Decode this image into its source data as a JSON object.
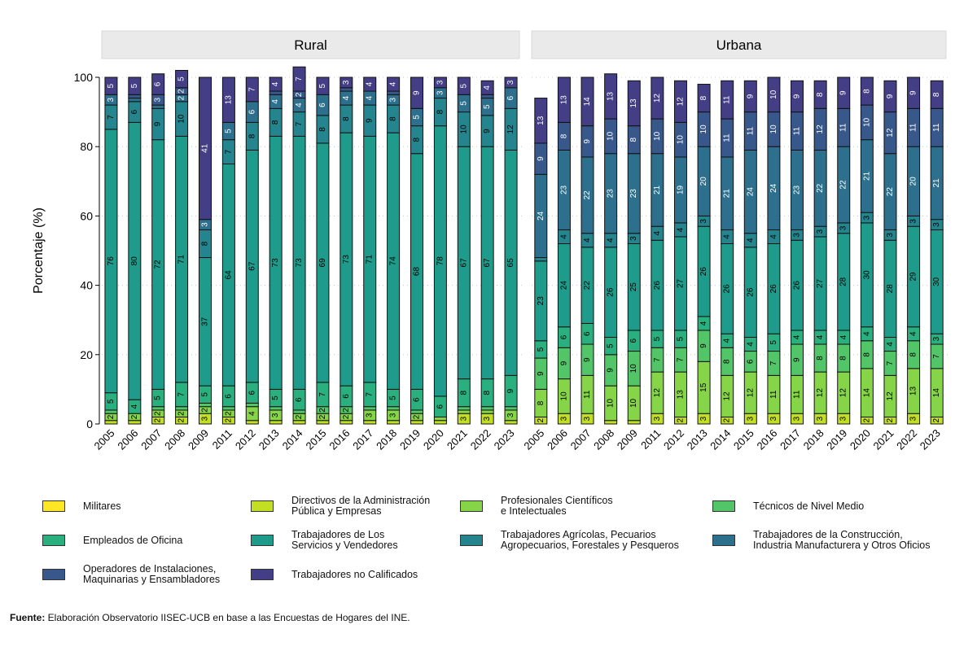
{
  "chart_data": {
    "type": "stacked-bar",
    "ylabel": "Porcentaje (%)",
    "ylim": [
      0,
      100
    ],
    "yticks": [
      0,
      20,
      40,
      60,
      80,
      100
    ],
    "legend_position": "bottom",
    "categories": [
      "Militares",
      "Directivos de la Administración\nPública y Empresas",
      "Profesionales Científicos\ne Intelectuales",
      "Técnicos de Nivel Medio",
      "Empleados de Oficina",
      "Trabajadores de Los\nServicios y Vendedores",
      "Trabajadores Agrícolas, Pecuarios\nAgropecuarios, Forestales y Pesqueros",
      "Trabajadores de la Construcción,\nIndustria Manufacturera y Otros Oficios",
      "Operadores de Instalaciones,\nMaquinarias y Ensambladores",
      "Trabajadores no Calificados"
    ],
    "colors": [
      "#fde725",
      "#c2df23",
      "#86d549",
      "#52c569",
      "#2ab07f",
      "#1e9b8a",
      "#25858e",
      "#2d708e",
      "#38588c",
      "#433e85"
    ],
    "panels": [
      {
        "title": "Rural",
        "years": [
          "2005",
          "2006",
          "2007",
          "2008",
          "2009",
          "2011",
          "2012",
          "2013",
          "2014",
          "2015",
          "2016",
          "2017",
          "2018",
          "2019",
          "2020",
          "2021",
          "2022",
          "2023"
        ],
        "values": [
          [
            0,
            1,
            2,
            1,
            5,
            76,
            7,
            3,
            0,
            5
          ],
          [
            0,
            1,
            2,
            0,
            4,
            80,
            6,
            1,
            1,
            5
          ],
          [
            0,
            2,
            2,
            1,
            5,
            72,
            9,
            1,
            3,
            6
          ],
          [
            0,
            2,
            2,
            1,
            7,
            71,
            10,
            2,
            2,
            5
          ],
          [
            0,
            3,
            2,
            1,
            5,
            37,
            8,
            3,
            0,
            41
          ],
          [
            0,
            2,
            2,
            1,
            6,
            64,
            7,
            5,
            0,
            13
          ],
          [
            0,
            1,
            4,
            1,
            6,
            67,
            8,
            6,
            0,
            7
          ],
          [
            0,
            1,
            3,
            1,
            5,
            73,
            8,
            4,
            1,
            4
          ],
          [
            0,
            1,
            2,
            1,
            6,
            73,
            7,
            4,
            2,
            7
          ],
          [
            0,
            1,
            2,
            2,
            7,
            69,
            8,
            6,
            0,
            5
          ],
          [
            0,
            1,
            2,
            2,
            6,
            73,
            8,
            4,
            1,
            3
          ],
          [
            0,
            1,
            3,
            1,
            7,
            71,
            9,
            4,
            0,
            4
          ],
          [
            0,
            1,
            3,
            1,
            5,
            74,
            8,
            3,
            1,
            4
          ],
          [
            0,
            1,
            2,
            1,
            6,
            68,
            8,
            5,
            0,
            9
          ],
          [
            0,
            1,
            1,
            0,
            6,
            78,
            8,
            3,
            0,
            3
          ],
          [
            0,
            3,
            1,
            1,
            8,
            67,
            10,
            5,
            0,
            5
          ],
          [
            0,
            3,
            1,
            1,
            8,
            67,
            9,
            5,
            1,
            4
          ],
          [
            0,
            1,
            3,
            1,
            9,
            65,
            12,
            6,
            0,
            3
          ]
        ]
      },
      {
        "title": "Urbana",
        "years": [
          "2005",
          "2006",
          "2007",
          "2008",
          "2009",
          "2011",
          "2012",
          "2013",
          "2014",
          "2015",
          "2016",
          "2017",
          "2018",
          "2019",
          "2020",
          "2021",
          "2022",
          "2023"
        ],
        "values": [
          [
            0,
            2,
            8,
            9,
            5,
            23,
            1,
            24,
            9,
            13
          ],
          [
            0,
            3,
            10,
            9,
            6,
            24,
            4,
            23,
            8,
            13
          ],
          [
            0,
            3,
            11,
            9,
            6,
            22,
            4,
            22,
            9,
            14
          ],
          [
            0,
            1,
            10,
            9,
            5,
            26,
            4,
            23,
            10,
            13
          ],
          [
            0,
            1,
            10,
            10,
            6,
            25,
            3,
            23,
            8,
            13
          ],
          [
            0,
            3,
            12,
            7,
            5,
            26,
            4,
            21,
            10,
            12
          ],
          [
            0,
            2,
            13,
            7,
            5,
            27,
            4,
            19,
            10,
            12
          ],
          [
            0,
            3,
            15,
            9,
            4,
            26,
            3,
            20,
            10,
            8
          ],
          [
            0,
            2,
            12,
            8,
            4,
            26,
            4,
            21,
            11,
            11
          ],
          [
            0,
            3,
            12,
            6,
            4,
            26,
            4,
            24,
            11,
            9
          ],
          [
            0,
            3,
            11,
            7,
            5,
            26,
            4,
            24,
            10,
            10
          ],
          [
            0,
            3,
            11,
            9,
            4,
            26,
            3,
            23,
            11,
            9
          ],
          [
            0,
            3,
            12,
            8,
            4,
            27,
            3,
            22,
            12,
            8
          ],
          [
            0,
            3,
            12,
            8,
            4,
            28,
            3,
            22,
            11,
            9
          ],
          [
            0,
            2,
            14,
            8,
            4,
            30,
            3,
            21,
            10,
            8
          ],
          [
            0,
            2,
            12,
            7,
            4,
            28,
            3,
            22,
            12,
            9
          ],
          [
            0,
            3,
            13,
            8,
            4,
            29,
            3,
            20,
            11,
            9
          ],
          [
            0,
            2,
            14,
            7,
            3,
            30,
            3,
            21,
            11,
            8
          ]
        ]
      }
    ]
  },
  "source": {
    "label": "Fuente:",
    "text": " Elaboración Observatorio IISEC-UCB en base a las Encuestas de Hogares del INE."
  }
}
